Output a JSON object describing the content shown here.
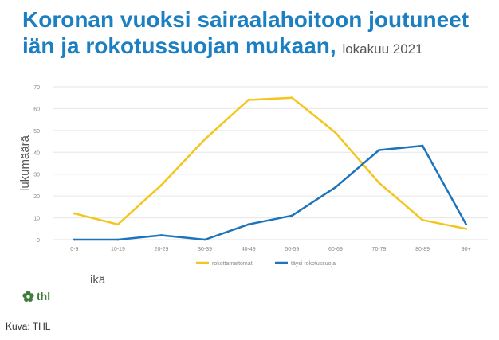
{
  "header": {
    "title_line1": "Koronan vuoksi sairaalahoitoon joutuneet",
    "title_line2": "iän ja rokotussuojan mukaan,",
    "subtitle": "lokakuu 2021"
  },
  "logo": {
    "text": "thl",
    "icon": "thl-flower-logo-icon",
    "color": "#3d7f3a"
  },
  "caption": "Kuva: THL",
  "chart_data": {
    "type": "line",
    "xlabel": "ikä",
    "ylabel": "lukumäärä",
    "categories": [
      "0-9",
      "10-19",
      "20-29",
      "30-39",
      "40-49",
      "50-59",
      "60-69",
      "70-79",
      "80-89",
      "90+"
    ],
    "yticks": [
      0,
      10,
      20,
      30,
      40,
      50,
      60,
      70
    ],
    "ylim": [
      0,
      70
    ],
    "grid": true,
    "legend": "bottom-center",
    "series": [
      {
        "name": "rokottamattomat",
        "color": "#f4c51d",
        "values": [
          12,
          7,
          25,
          46,
          64,
          65,
          49,
          26,
          9,
          5
        ]
      },
      {
        "name": "täysi rokotussuoja",
        "color": "#1d74bb",
        "values": [
          0,
          0,
          2,
          0,
          7,
          11,
          24,
          41,
          43,
          7
        ]
      }
    ]
  }
}
